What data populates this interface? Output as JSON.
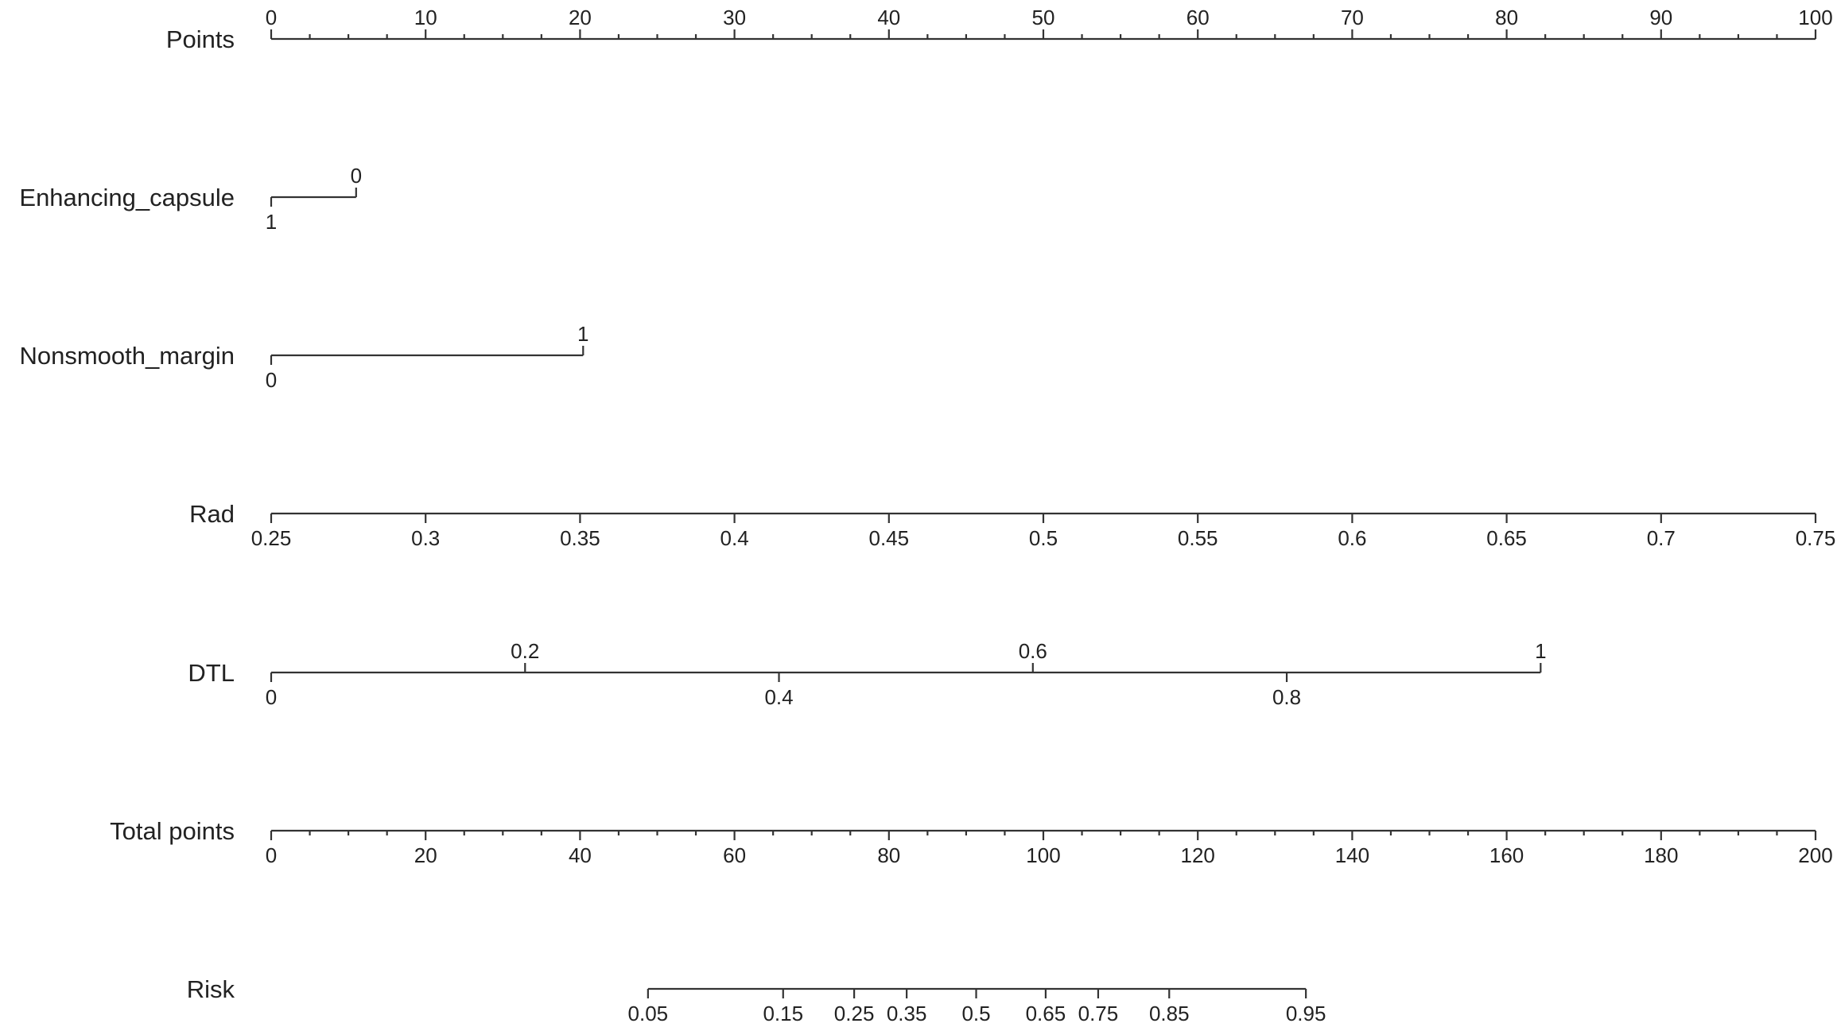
{
  "chart_data": {
    "type": "nomogram",
    "title": "",
    "axes": [
      {
        "name": "Points",
        "kind": "continuous",
        "range": [
          0,
          100
        ],
        "label_position": "above",
        "labels": [
          "0",
          "10",
          "20",
          "30",
          "40",
          "50",
          "60",
          "70",
          "80",
          "90",
          "100"
        ],
        "label_values": [
          0,
          10,
          20,
          30,
          40,
          50,
          60,
          70,
          80,
          90,
          100
        ],
        "minor_tick_step": 2.5
      },
      {
        "name": "Enhancing_capsule",
        "kind": "categorical",
        "levels": [
          {
            "label": "1",
            "points": 0,
            "label_position": "below"
          },
          {
            "label": "0",
            "points": 5.5,
            "label_position": "above"
          }
        ]
      },
      {
        "name": "Nonsmooth_margin",
        "kind": "categorical",
        "levels": [
          {
            "label": "0",
            "points": 0,
            "label_position": "below"
          },
          {
            "label": "1",
            "points": 20.2,
            "label_position": "above"
          }
        ]
      },
      {
        "name": "Rad",
        "kind": "continuous",
        "points_range": [
          0,
          100
        ],
        "label_position": "below",
        "labels": [
          "0.25",
          "0.3",
          "0.35",
          "0.4",
          "0.45",
          "0.5",
          "0.55",
          "0.6",
          "0.65",
          "0.7",
          "0.75"
        ],
        "label_values": [
          0.25,
          0.3,
          0.35,
          0.4,
          0.45,
          0.5,
          0.55,
          0.6,
          0.65,
          0.7,
          0.75
        ],
        "value_range": [
          0.25,
          0.75
        ]
      },
      {
        "name": "DTL",
        "kind": "continuous",
        "points_range": [
          0,
          82.2
        ],
        "value_range": [
          0,
          1
        ],
        "ticks": [
          {
            "label": "0",
            "value": 0,
            "position": "below"
          },
          {
            "label": "0.2",
            "value": 0.2,
            "position": "above"
          },
          {
            "label": "0.4",
            "value": 0.4,
            "position": "below"
          },
          {
            "label": "0.6",
            "value": 0.6,
            "position": "above"
          },
          {
            "label": "0.8",
            "value": 0.8,
            "position": "below"
          },
          {
            "label": "1",
            "value": 1,
            "position": "above"
          }
        ]
      },
      {
        "name": "Total points",
        "kind": "continuous",
        "range": [
          0,
          200
        ],
        "label_position": "below",
        "labels": [
          "0",
          "20",
          "40",
          "60",
          "80",
          "100",
          "120",
          "140",
          "160",
          "180",
          "200"
        ],
        "label_values": [
          0,
          20,
          40,
          60,
          80,
          100,
          120,
          140,
          160,
          180,
          200
        ],
        "minor_tick_step": 5
      },
      {
        "name": "Risk",
        "kind": "continuous",
        "label_position": "below",
        "labels": [
          "0.05",
          "0.15",
          "0.25",
          "0.35",
          "0.5",
          "0.65",
          "0.75",
          "0.85",
          "0.95"
        ],
        "label_values": [
          0.05,
          0.15,
          0.25,
          0.35,
          0.5,
          0.65,
          0.75,
          0.85,
          0.95
        ],
        "total_points_at_labels": [
          48.8,
          66.3,
          75.5,
          82.3,
          91.3,
          100.3,
          107.1,
          116.3,
          134.0
        ]
      }
    ],
    "grid": false,
    "legend": "none"
  }
}
